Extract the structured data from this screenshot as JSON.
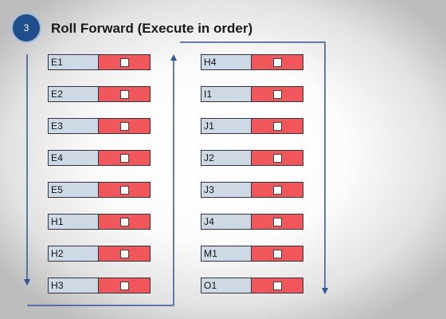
{
  "step_number": "3",
  "title": "Roll Forward (Execute in order)",
  "colors": {
    "step_circle": "#1f4e8c",
    "label_fill": "#cfd9e6",
    "checkbox_cell_fill": "#f0565a",
    "arrow": "#2f5597"
  },
  "columns": [
    {
      "items": [
        "E1",
        "E2",
        "E3",
        "E4",
        "E5",
        "H1",
        "H2",
        "H3"
      ]
    },
    {
      "items": [
        "H4",
        "I1",
        "J1",
        "J2",
        "J3",
        "J4",
        "M1",
        "O1"
      ]
    }
  ],
  "flow_arrows": [
    "arrow-down-left",
    "arrow-up-middle",
    "arrow-down-right"
  ]
}
